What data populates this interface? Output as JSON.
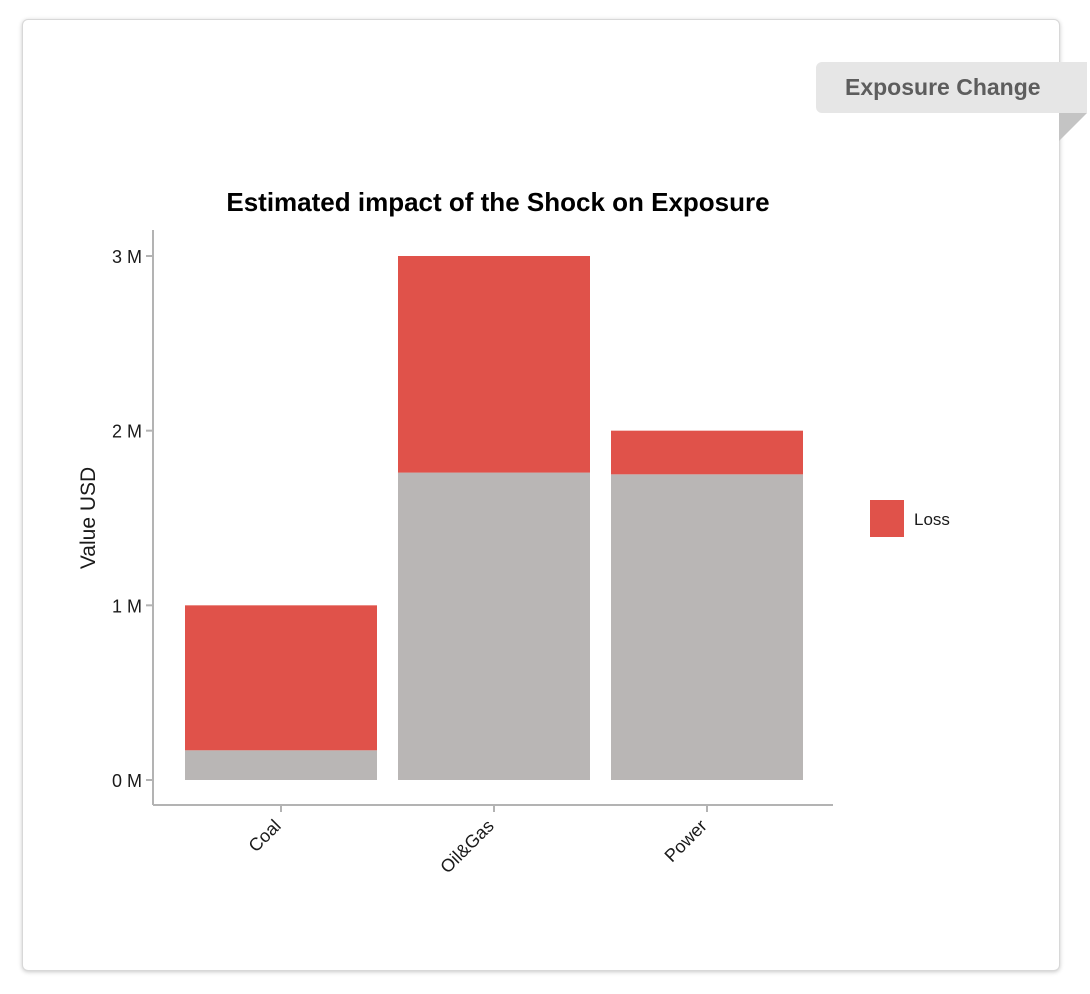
{
  "badge": {
    "label": "Exposure Change"
  },
  "chart_data": {
    "type": "bar",
    "stacked": true,
    "title": "Estimated impact of the Shock on Exposure",
    "xlabel": "",
    "ylabel": "Value USD",
    "categories": [
      "Coal",
      "Oil&Gas",
      "Power"
    ],
    "ylim": [
      0,
      3000000
    ],
    "yticks": [
      {
        "value": 0,
        "label": "0 M"
      },
      {
        "value": 1000000,
        "label": "1 M"
      },
      {
        "value": 2000000,
        "label": "2 M"
      },
      {
        "value": 3000000,
        "label": "3 M"
      }
    ],
    "series": [
      {
        "key": "remaining",
        "values": [
          170000,
          1760000,
          1750000
        ],
        "color": "#b9b6b5"
      },
      {
        "key": "loss",
        "name": "Loss",
        "values": [
          830000,
          1240000,
          250000
        ],
        "color": "#e0524a"
      }
    ],
    "legend": {
      "position": "right",
      "entries": [
        "Loss"
      ]
    },
    "grid": false
  }
}
